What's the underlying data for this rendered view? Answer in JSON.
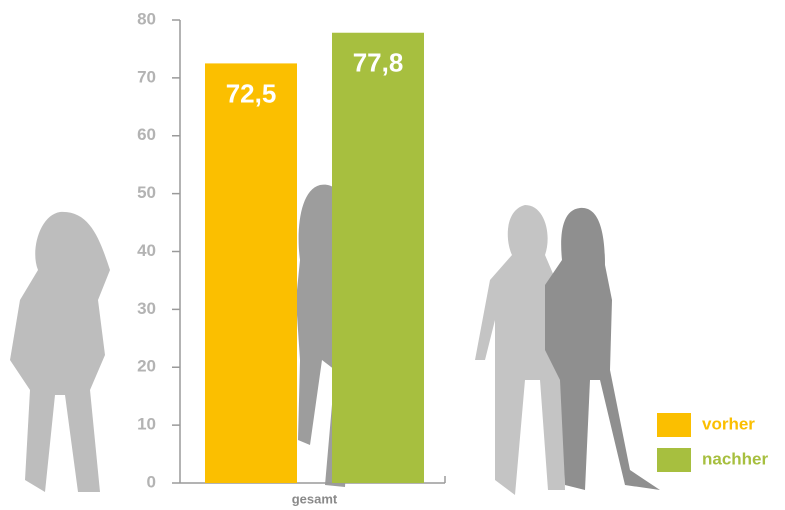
{
  "chart_data": {
    "type": "bar",
    "categories": [
      "gesamt"
    ],
    "series": [
      {
        "name": "vorher",
        "color": "#fbbf00",
        "values": [
          72.5
        ],
        "value_labels": [
          "72,5"
        ]
      },
      {
        "name": "nachher",
        "color": "#a7bf3f",
        "values": [
          77.8
        ],
        "value_labels": [
          "77,8"
        ]
      }
    ],
    "ylim": [
      0,
      80
    ],
    "yticks": [
      0,
      10,
      20,
      30,
      40,
      50,
      60,
      70,
      80
    ],
    "legend": "bottom-right"
  }
}
